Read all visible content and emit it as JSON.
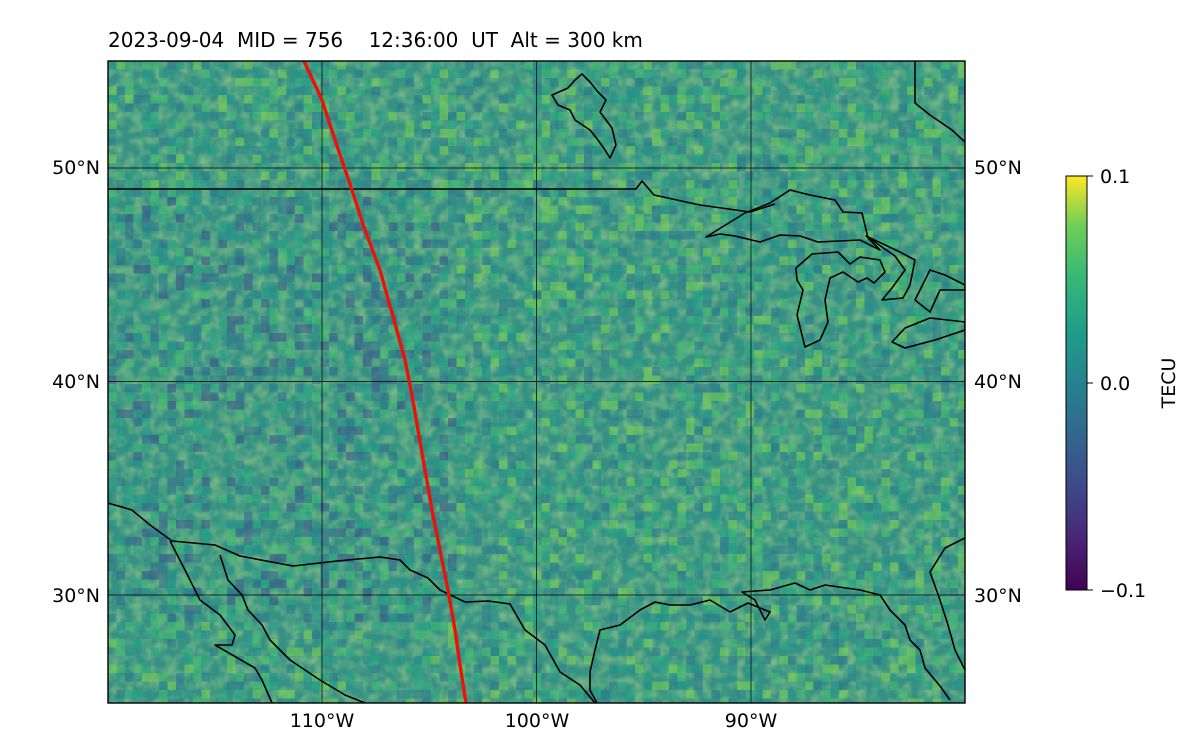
{
  "title": "2023-09-04  MID = 756    12:36:00  UT  Alt = 300 km",
  "map": {
    "lat_ticks": [
      {
        "lat": 50,
        "label": "50°N"
      },
      {
        "lat": 40,
        "label": "40°N"
      },
      {
        "lat": 30,
        "label": "30°N"
      }
    ],
    "lon_ticks": [
      {
        "lon": -110,
        "label": "110°W"
      },
      {
        "lon": -100,
        "label": "100°W"
      },
      {
        "lon": -90,
        "label": "90°W"
      }
    ],
    "track_color": "#e8140c",
    "coastline_color": "#000000",
    "gridline_color": "#000000"
  },
  "colorbar": {
    "label": "TECU",
    "colormap": "viridis",
    "vmin": -0.1,
    "vmax": 0.1,
    "ticks": [
      {
        "value": 0.1,
        "label": "0.1"
      },
      {
        "value": 0.0,
        "label": "0.0"
      },
      {
        "value": -0.1,
        "label": "−0.1"
      }
    ]
  }
}
